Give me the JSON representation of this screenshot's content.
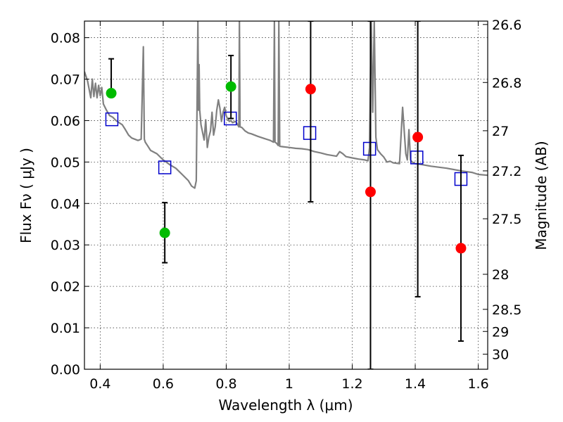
{
  "chart_data": {
    "type": "scatter",
    "title": "",
    "xlabel": "Wavelength  λ (μm)",
    "ylabel": "Flux  Fν  ( μJy )",
    "ylabel_right": "Magnitude (AB)",
    "xlim": [
      0.35,
      1.63
    ],
    "ylim": [
      0.0,
      0.084
    ],
    "grid": true,
    "x_ticks": [
      0.4,
      0.6,
      0.8,
      1.0,
      1.2,
      1.4,
      1.6
    ],
    "x_tick_labels": [
      "0.4",
      "0.6",
      "0.8",
      "1",
      "1.2",
      "1.4",
      "1.6"
    ],
    "y_ticks": [
      0.0,
      0.01,
      0.02,
      0.03,
      0.04,
      0.05,
      0.06,
      0.07,
      0.08
    ],
    "y_tick_labels": [
      "0.00",
      "0.01",
      "0.02",
      "0.03",
      "0.04",
      "0.05",
      "0.06",
      "0.07",
      "0.08"
    ],
    "mag_ticks": [
      26.6,
      26.8,
      27,
      27.2,
      27.5,
      28,
      28.5,
      29,
      30
    ],
    "mag_tick_labels": [
      "26.6",
      "26.8",
      "27",
      "27.2",
      "27.5",
      "28",
      "28.5",
      "29",
      "30"
    ],
    "colors": {
      "model": "#808080",
      "green": "#00bb00",
      "red": "#ff0000",
      "box": "#0000cc",
      "error": "#000000"
    },
    "series": [
      {
        "name": "model spectrum",
        "kind": "line",
        "x": [
          0.35,
          0.36,
          0.37,
          0.375,
          0.38,
          0.385,
          0.39,
          0.395,
          0.4,
          0.405,
          0.41,
          0.42,
          0.43,
          0.44,
          0.45,
          0.46,
          0.47,
          0.48,
          0.49,
          0.5,
          0.52,
          0.53,
          0.537,
          0.54,
          0.543,
          0.55,
          0.56,
          0.58,
          0.6,
          0.62,
          0.64,
          0.66,
          0.68,
          0.69,
          0.7,
          0.705,
          0.71,
          0.712,
          0.714,
          0.716,
          0.72,
          0.73,
          0.735,
          0.74,
          0.745,
          0.75,
          0.755,
          0.76,
          0.765,
          0.77,
          0.775,
          0.78,
          0.785,
          0.79,
          0.795,
          0.8,
          0.805,
          0.81,
          0.815,
          0.82,
          0.83,
          0.84,
          0.842,
          0.844,
          0.85,
          0.86,
          0.87,
          0.88,
          0.9,
          0.92,
          0.94,
          0.95,
          0.953,
          0.955,
          0.96,
          0.965,
          0.967,
          0.97,
          0.98,
          1.0,
          1.02,
          1.04,
          1.06,
          1.08,
          1.1,
          1.12,
          1.15,
          1.16,
          1.17,
          1.18,
          1.2,
          1.22,
          1.24,
          1.25,
          1.255,
          1.26,
          1.265,
          1.27,
          1.275,
          1.28,
          1.29,
          1.3,
          1.31,
          1.32,
          1.33,
          1.35,
          1.36,
          1.37,
          1.375,
          1.38,
          1.385,
          1.39,
          1.4,
          1.42,
          1.45,
          1.5,
          1.55,
          1.58,
          1.6,
          1.63
        ],
        "y": [
          0.0718,
          0.0695,
          0.0655,
          0.07,
          0.0658,
          0.069,
          0.0655,
          0.0685,
          0.066,
          0.068,
          0.064,
          0.0625,
          0.0612,
          0.0608,
          0.06,
          0.0595,
          0.059,
          0.0578,
          0.0565,
          0.0558,
          0.0552,
          0.0555,
          0.0778,
          0.0555,
          0.0548,
          0.054,
          0.0528,
          0.052,
          0.0505,
          0.0494,
          0.0485,
          0.047,
          0.0455,
          0.0442,
          0.0437,
          0.0455,
          0.084,
          0.0625,
          0.0735,
          0.0625,
          0.059,
          0.0553,
          0.0602,
          0.0535,
          0.056,
          0.0575,
          0.062,
          0.0565,
          0.0585,
          0.0625,
          0.065,
          0.063,
          0.0598,
          0.062,
          0.0632,
          0.0612,
          0.0603,
          0.0598,
          0.06,
          0.0595,
          0.0598,
          0.0585,
          0.084,
          0.0585,
          0.0583,
          0.0575,
          0.057,
          0.0568,
          0.0562,
          0.0557,
          0.0552,
          0.0548,
          0.084,
          0.0548,
          0.0545,
          0.054,
          0.084,
          0.0538,
          0.0537,
          0.0535,
          0.0533,
          0.0532,
          0.053,
          0.0525,
          0.0522,
          0.0518,
          0.0514,
          0.0525,
          0.052,
          0.0513,
          0.051,
          0.0507,
          0.0505,
          0.0503,
          0.0535,
          0.084,
          0.062,
          0.084,
          0.056,
          0.053,
          0.052,
          0.0512,
          0.05,
          0.0502,
          0.0498,
          0.0496,
          0.0632,
          0.052,
          0.0505,
          0.0578,
          0.0505,
          0.05,
          0.0496,
          0.0494,
          0.049,
          0.0485,
          0.0478,
          0.0475,
          0.047,
          0.0468
        ]
      },
      {
        "name": "model bandpass fluxes",
        "kind": "box",
        "x": [
          0.437,
          0.605,
          0.813,
          1.065,
          1.255,
          1.405,
          1.545
        ],
        "y": [
          0.0603,
          0.0487,
          0.0605,
          0.057,
          0.0532,
          0.0511,
          0.0459
        ]
      },
      {
        "name": "detections",
        "kind": "point",
        "color": "green",
        "x": [
          0.435,
          0.605,
          0.815
        ],
        "y": [
          0.0666,
          0.0329,
          0.0682
        ],
        "err_low": [
          0.0666,
          0.0257,
          0.0605
        ],
        "err_high": [
          0.0749,
          0.0402,
          0.0757
        ]
      },
      {
        "name": "non-detections",
        "kind": "point",
        "color": "red",
        "x": [
          1.068,
          1.258,
          1.408,
          1.545
        ],
        "y": [
          0.0676,
          0.0428,
          0.056,
          0.0292
        ],
        "err_low": [
          0.0404,
          0.0,
          0.0175,
          0.0068
        ],
        "err_high": [
          0.084,
          0.084,
          0.084,
          0.0516
        ]
      }
    ]
  }
}
